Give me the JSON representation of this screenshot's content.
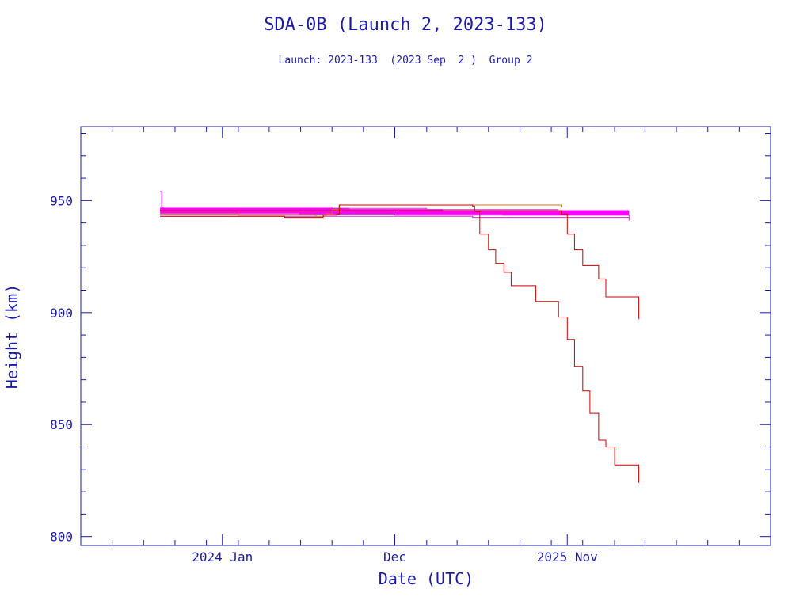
{
  "colors": {
    "axis": "#1a1aa6",
    "text": "#1a1aa6",
    "primary_series": "#ff00ff",
    "secondary_series": "#cc33cc",
    "decay_series": "#cc0000",
    "orange_series": "#cc7722"
  },
  "chart_data": {
    "type": "line",
    "title": "SDA-0B (Launch 2, 2023-133)",
    "subtitle": "Launch: 2023-133  (2023 Sep  2 )  Group 2",
    "xlabel": "Date (UTC)",
    "ylabel": "Height (km)",
    "x_axis_type": "date",
    "xlim": [
      "2023-04-01",
      "2026-12-01"
    ],
    "ylim": [
      796,
      983
    ],
    "x_tick_labels": [
      {
        "date": "2024-01-01",
        "label": "2024 Jan"
      },
      {
        "date": "2024-12-01",
        "label": "Dec"
      },
      {
        "date": "2025-11-01",
        "label": "2025 Nov"
      }
    ],
    "y_tick_labels": [
      800,
      850,
      900,
      950
    ],
    "grid": false,
    "legend": "none",
    "series": [
      {
        "color_key": "primary_series",
        "thick": true,
        "x": [
          "2023-09-02",
          "2024-03-01",
          "2024-09-01",
          "2025-03-01",
          "2025-09-01",
          "2026-03-01"
        ],
        "y": [
          946,
          946,
          945.5,
          945,
          945,
          945
        ]
      },
      {
        "color_key": "primary_series",
        "thick": true,
        "x": [
          "2023-09-02",
          "2024-06-01",
          "2025-01-01",
          "2025-07-01",
          "2026-03-01"
        ],
        "y": [
          945,
          944.5,
          944.5,
          944,
          944
        ]
      },
      {
        "color_key": "primary_series",
        "thick": false,
        "x": [
          "2023-09-02",
          "2023-09-05",
          "2023-09-08"
        ],
        "y": [
          954,
          947,
          946
        ]
      },
      {
        "color_key": "secondary_series",
        "thick": false,
        "x": [
          "2023-09-02",
          "2024-02-01",
          "2024-08-01",
          "2025-02-01",
          "2025-10-15"
        ],
        "y": [
          947,
          947,
          946.5,
          946,
          946
        ]
      },
      {
        "color_key": "secondary_series",
        "thick": false,
        "x": [
          "2023-09-02",
          "2024-10-01",
          "2025-05-01",
          "2026-03-01"
        ],
        "y": [
          943,
          943,
          942.5,
          942
        ]
      },
      {
        "color_key": "secondary_series",
        "thick": false,
        "x": [
          "2023-09-02",
          "2024-12-01",
          "2026-03-01"
        ],
        "y": [
          944,
          943.5,
          941
        ]
      },
      {
        "color_key": "orange_series",
        "thick": false,
        "x": [
          "2023-09-02",
          "2024-02-01",
          "2024-07-01",
          "2024-07-20",
          "2024-08-01",
          "2024-08-15",
          "2025-06-01",
          "2025-10-20"
        ],
        "y": [
          944,
          943.5,
          943,
          944,
          946,
          948,
          948,
          947
        ]
      },
      {
        "color_key": "decay_series",
        "thick": false,
        "x": [
          "2023-09-02",
          "2024-05-01",
          "2024-07-01",
          "2024-07-15",
          "2024-08-10",
          "2024-08-15",
          "2025-05-01",
          "2025-05-05"
        ],
        "y": [
          943,
          942.5,
          942.5,
          943.5,
          944,
          948,
          947.5,
          945
        ]
      },
      {
        "color_key": "decay_series",
        "thick": false,
        "x": [
          "2025-05-05",
          "2025-05-15",
          "2025-06-01",
          "2025-06-15",
          "2025-07-01",
          "2025-07-15",
          "2025-08-15",
          "2025-09-01",
          "2025-10-01",
          "2025-10-15",
          "2025-11-01",
          "2025-11-15",
          "2025-12-01",
          "2025-12-15",
          "2026-01-01",
          "2026-01-15",
          "2026-02-01",
          "2026-03-01",
          "2026-03-20"
        ],
        "y": [
          945,
          935,
          928,
          922,
          918,
          912,
          912,
          905,
          905,
          898,
          888,
          876,
          865,
          855,
          843,
          840,
          832,
          832,
          824
        ]
      },
      {
        "color_key": "decay_series",
        "thick": false,
        "x": [
          "2023-09-02",
          "2024-10-01",
          "2025-10-15",
          "2025-10-20",
          "2025-11-01",
          "2025-11-15",
          "2025-12-01",
          "2025-12-15",
          "2026-01-01",
          "2026-01-15",
          "2026-02-20",
          "2026-03-20"
        ],
        "y": [
          945.5,
          945.5,
          945.5,
          944,
          935,
          928,
          921,
          921,
          915,
          907,
          907,
          897
        ]
      }
    ]
  }
}
